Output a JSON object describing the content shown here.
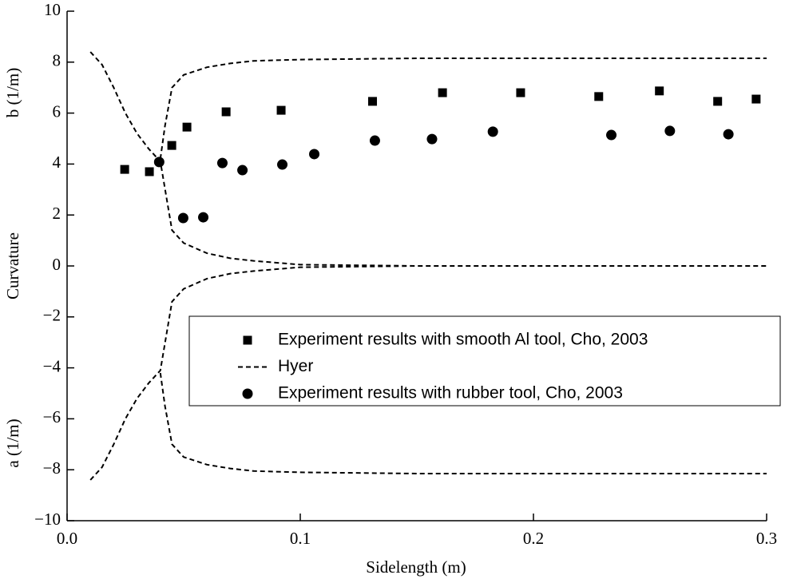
{
  "chart_data": {
    "type": "scatter",
    "xlabel": "Sidelength (m)",
    "ylabel": "Curvature",
    "ylabel_top": "b (1/m)",
    "ylabel_bottom": "a (1/m)",
    "xlim": [
      0,
      0.3
    ],
    "xticks": [
      {
        "value": 0,
        "label": "0.0"
      },
      0.1,
      0.2,
      0.3
    ],
    "ylim": [
      -10,
      10
    ],
    "yticks": [
      {
        "value": -10,
        "label": "−10"
      },
      {
        "value": -8,
        "label": "−8"
      },
      {
        "value": -6,
        "label": "−6"
      },
      {
        "value": -4,
        "label": "−4"
      },
      {
        "value": -2,
        "label": "−2"
      },
      0,
      2,
      4,
      6,
      8,
      10
    ],
    "series": [
      {
        "name": "Experiment results with smooth Al tool, Cho, 2003",
        "type": "scatter",
        "marker": "square",
        "color": "#000000",
        "x": [
          0.0247,
          0.0353,
          0.0449,
          0.0514,
          0.0682,
          0.0918,
          0.131,
          0.161,
          0.1945,
          0.228,
          0.254,
          0.279,
          0.2955
        ],
        "values": [
          3.79,
          3.7,
          4.73,
          5.45,
          6.05,
          6.11,
          6.46,
          6.8,
          6.8,
          6.65,
          6.87,
          6.46,
          6.55
        ]
      },
      {
        "name": "Hyer",
        "type": "line",
        "dash": true,
        "color": "#000000",
        "x": [
          0.01,
          0.015,
          0.02,
          0.025,
          0.03,
          0.035,
          0.04,
          0.045,
          0.05,
          0.06,
          0.07,
          0.08,
          0.1,
          0.15,
          0.2,
          0.3,
          0.3,
          0.04,
          0.042,
          0.045,
          0.05,
          0.06,
          0.07,
          0.08,
          0.1,
          0.15,
          0.2,
          0.3,
          0.3,
          0.01,
          0.015,
          0.02,
          0.025,
          0.03,
          0.035,
          0.04,
          0.045,
          0.05,
          0.06,
          0.07,
          0.08,
          0.1,
          0.15,
          0.2,
          0.3,
          0.3,
          0.04,
          0.042,
          0.045,
          0.05,
          0.06,
          0.07,
          0.08,
          0.1,
          0.15,
          0.2,
          0.3
        ],
        "values": [
          8.4,
          7.9,
          7.0,
          6.0,
          5.2,
          4.6,
          4.1,
          1.4,
          0.9,
          0.5,
          0.3,
          0.2,
          0.05,
          0,
          0,
          0,
          null,
          4.2,
          5.5,
          7.0,
          7.5,
          7.8,
          7.95,
          8.05,
          8.1,
          8.15,
          8.15,
          8.15,
          null,
          -8.4,
          -7.9,
          -7.0,
          -6.0,
          -5.2,
          -4.6,
          -4.1,
          -1.4,
          -0.9,
          -0.5,
          -0.3,
          -0.2,
          -0.05,
          0,
          0,
          0,
          null,
          -4.2,
          -5.5,
          -7.0,
          -7.5,
          -7.8,
          -7.95,
          -8.05,
          -8.1,
          -8.15,
          -8.15,
          -8.15
        ]
      },
      {
        "name": "Experiment results with rubber tool, Cho, 2003",
        "type": "scatter",
        "marker": "circle",
        "color": "#000000",
        "x": [
          0.0395,
          0.0498,
          0.0584,
          0.0666,
          0.0752,
          0.0923,
          0.106,
          0.132,
          0.1565,
          0.1826,
          0.2334,
          0.2585,
          0.2836
        ],
        "values": [
          4.08,
          1.88,
          1.91,
          4.04,
          3.76,
          3.98,
          4.39,
          4.92,
          4.98,
          5.27,
          5.14,
          5.3,
          5.17
        ]
      }
    ]
  }
}
